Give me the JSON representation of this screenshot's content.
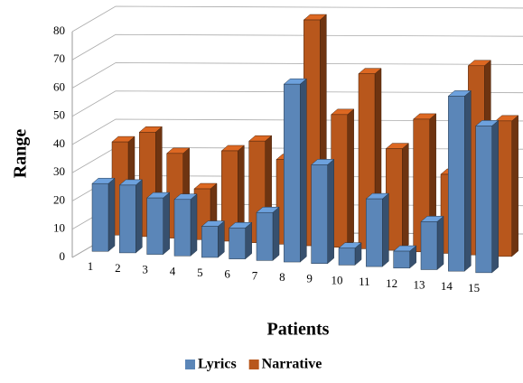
{
  "chart_data": {
    "type": "bar3d",
    "xlabel": "Patients",
    "ylabel": "Range",
    "categories": [
      "1",
      "2",
      "3",
      "4",
      "5",
      "6",
      "7",
      "8",
      "9",
      "10",
      "11",
      "12",
      "13",
      "14",
      "15"
    ],
    "series": [
      {
        "name": "Lyrics",
        "color": "#5b86b8",
        "values": [
          24,
          24,
          20,
          20,
          11,
          11,
          17,
          63,
          35,
          6,
          24,
          6,
          17,
          62,
          52
        ]
      },
      {
        "name": "Narrative",
        "color": "#b8571c",
        "values": [
          33,
          37,
          30,
          18,
          32,
          36,
          30,
          80,
          47,
          62,
          36,
          47,
          28,
          67,
          48
        ]
      }
    ],
    "ylim": [
      0,
      80
    ],
    "yticks": [
      0,
      10,
      20,
      30,
      40,
      50,
      60,
      70,
      80
    ],
    "grid": true
  }
}
